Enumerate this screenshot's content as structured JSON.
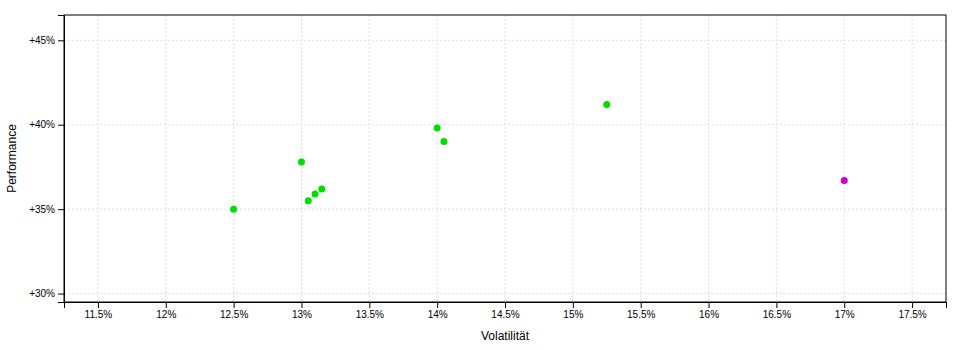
{
  "chart_data": {
    "type": "scatter",
    "xlabel": "Volatilität",
    "ylabel": "Performance",
    "series": [
      {
        "color": "#00dd00",
        "x": [
          12.5,
          13.0,
          13.05,
          13.1,
          13.15,
          14.0,
          14.05,
          15.25
        ],
        "values": [
          35.0,
          37.8,
          35.5,
          35.9,
          36.2,
          39.8,
          39.0,
          41.2
        ]
      },
      {
        "color": "#cc00cc",
        "x": [
          17.0
        ],
        "values": [
          36.7
        ]
      }
    ],
    "xlim": [
      11.25,
      17.75
    ],
    "ylim": [
      29.5,
      46.5
    ],
    "xticks": [
      {
        "value": 11.5,
        "label": "11.5%"
      },
      {
        "value": 12.0,
        "label": "12%"
      },
      {
        "value": 12.5,
        "label": "12.5%"
      },
      {
        "value": 13.0,
        "label": "13%"
      },
      {
        "value": 13.5,
        "label": "13.5%"
      },
      {
        "value": 14.0,
        "label": "14%"
      },
      {
        "value": 14.5,
        "label": "14.5%"
      },
      {
        "value": 15.0,
        "label": "15%"
      },
      {
        "value": 15.5,
        "label": "15.5%"
      },
      {
        "value": 16.0,
        "label": "16%"
      },
      {
        "value": 16.5,
        "label": "16.5%"
      },
      {
        "value": 17.0,
        "label": "17%"
      },
      {
        "value": 17.5,
        "label": "17.5%"
      }
    ],
    "yticks": [
      {
        "value": 30,
        "label": "+30%"
      },
      {
        "value": 35,
        "label": "+35%"
      },
      {
        "value": 40,
        "label": "+40%"
      },
      {
        "value": 45,
        "label": "+45%"
      }
    ],
    "grid": true
  }
}
